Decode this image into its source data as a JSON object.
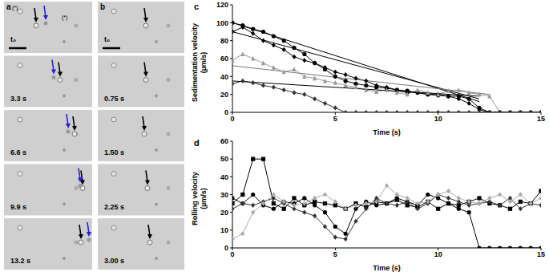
{
  "panels": [
    {
      "label": "a",
      "frames": [
        "t₀",
        "3.3 s",
        "6.6 s",
        "9.9 s",
        "13.2 s"
      ],
      "annotations": [
        "(*)",
        "(*)"
      ]
    },
    {
      "label": "b",
      "frames": [
        "t₀",
        "0.75 s",
        "1.50 s",
        "2.25 s",
        "3.00 s"
      ]
    }
  ],
  "chart_data": [
    {
      "type": "line",
      "title": "c",
      "x_label": "Time (s)",
      "y_label": "Sedimentation velocity (µm/s)",
      "xlim": [
        0,
        15
      ],
      "xticks": [
        0,
        5,
        10,
        15
      ],
      "ylim": [
        0,
        120
      ],
      "yticks": [
        0,
        20,
        40,
        60,
        80,
        100,
        120
      ],
      "series": [
        {
          "color": "#000000",
          "marker": "diamond",
          "line_style": "solid",
          "x": [
            0,
            0.5,
            1,
            1.5,
            2,
            2.5,
            3,
            3.5,
            4,
            4.5,
            5,
            5.5,
            6,
            6.5,
            7,
            7.5,
            8,
            8.5,
            9,
            9.5,
            10,
            10.5,
            11,
            11.5,
            12,
            12.5,
            13,
            13.5,
            14,
            14.5,
            15
          ],
          "values": [
            90,
            95,
            88,
            80,
            75,
            70,
            62,
            58,
            55,
            50,
            45,
            42,
            38,
            35,
            30,
            28,
            25,
            22,
            22,
            20,
            20,
            18,
            15,
            10,
            3,
            0,
            0,
            0,
            0,
            0,
            0
          ]
        },
        {
          "color": "#000000",
          "marker": "circle",
          "line_style": "solid",
          "x": [
            0,
            0.5,
            1,
            1.5,
            2,
            2.5,
            3,
            3.5,
            4,
            4.5,
            5,
            5.5,
            6,
            6.5,
            7,
            7.5,
            8,
            8.5,
            9,
            9.5,
            10,
            10.5,
            11,
            11.5,
            12,
            12.5,
            13,
            13.5,
            14,
            14.5,
            15
          ],
          "values": [
            100,
            97,
            93,
            90,
            85,
            80,
            72,
            65,
            55,
            48,
            40,
            35,
            32,
            30,
            28,
            27,
            25,
            24,
            22,
            20,
            19,
            18,
            18,
            15,
            5,
            0,
            0,
            0,
            0,
            0,
            0
          ]
        },
        {
          "color": "#999999",
          "marker": "triangle",
          "line_style": "solid",
          "x": [
            0,
            0.5,
            1,
            1.5,
            2,
            2.5,
            3,
            3.5,
            4,
            4.5,
            5,
            5.5,
            6,
            6.5,
            7,
            7.5,
            8,
            8.5,
            9,
            9.5,
            10,
            10.5,
            11,
            11.5,
            12,
            12.5,
            13,
            13.5,
            14,
            14.5,
            15
          ],
          "values": [
            58,
            65,
            60,
            55,
            50,
            45,
            48,
            40,
            38,
            35,
            33,
            30,
            28,
            25,
            23,
            25,
            22,
            20,
            25,
            22,
            20,
            24,
            25,
            22,
            20,
            18,
            0,
            0,
            0,
            0,
            0
          ]
        },
        {
          "color": "#333333",
          "marker": "diamond",
          "line_style": "solid",
          "x": [
            0,
            0.5,
            1,
            1.5,
            2,
            2.5,
            3,
            3.5,
            4,
            4.5,
            5,
            5.5,
            6,
            6.5,
            7,
            7.5,
            8,
            8.5,
            9,
            9.5,
            10,
            10.5,
            11,
            11.5,
            12,
            12.5,
            13,
            13.5,
            14,
            14.5,
            15
          ],
          "values": [
            32,
            35,
            33,
            30,
            28,
            25,
            22,
            20,
            15,
            10,
            5,
            0,
            0,
            0,
            0,
            0,
            0,
            0,
            0,
            0,
            0,
            0,
            0,
            0,
            0,
            0,
            0,
            0,
            0,
            0,
            0
          ]
        },
        {
          "type": "line",
          "color": "#000000",
          "marker": "none",
          "line_style": "solid",
          "x": [
            0,
            12
          ],
          "values": [
            100,
            12
          ]
        },
        {
          "type": "line",
          "color": "#000000",
          "marker": "none",
          "line_style": "solid",
          "x": [
            0,
            12
          ],
          "values": [
            90,
            15
          ]
        },
        {
          "type": "line",
          "color": "#777777",
          "marker": "none",
          "line_style": "solid",
          "x": [
            0,
            12.5
          ],
          "values": [
            52,
            20
          ]
        },
        {
          "type": "line",
          "color": "#000000",
          "marker": "none",
          "line_style": "solid",
          "x": [
            0,
            12
          ],
          "values": [
            35,
            18
          ]
        }
      ]
    },
    {
      "type": "line",
      "title": "d",
      "x_label": "Time (s)",
      "y_label": "Rolling velocity (µm/s)",
      "xlim": [
        0,
        15
      ],
      "xticks": [
        0,
        5,
        10,
        15
      ],
      "ylim": [
        0,
        60
      ],
      "yticks": [
        0,
        10,
        20,
        30,
        40,
        50,
        60
      ],
      "series": [
        {
          "color": "#000000",
          "marker": "square",
          "line_style": "solid",
          "x": [
            0,
            0.5,
            1,
            1.5,
            2,
            2.5,
            3,
            3.5,
            4,
            4.5,
            5,
            5.5,
            6,
            6.5,
            7,
            7.5,
            8,
            8.5,
            9,
            9.5,
            10,
            10.5,
            11,
            11.5,
            12,
            12.5,
            13,
            13.5,
            14,
            14.5,
            15
          ],
          "values": [
            25,
            30,
            50,
            50,
            25,
            22,
            28,
            24,
            26,
            25,
            24,
            22,
            25,
            23,
            26,
            25,
            27,
            24,
            23,
            26,
            22,
            25,
            24,
            26,
            28,
            25,
            24,
            22,
            26,
            25,
            32
          ]
        },
        {
          "color": "#000000",
          "marker": "circle",
          "line_style": "solid",
          "x": [
            0,
            0.5,
            1,
            1.5,
            2,
            2.5,
            3,
            3.5,
            4,
            4.5,
            5,
            5.5,
            6,
            6.5,
            7,
            7.5,
            8,
            8.5,
            9,
            9.5,
            10,
            10.5,
            11,
            11.5,
            12,
            12.5,
            13,
            13.5,
            14,
            14.5,
            15
          ],
          "values": [
            28,
            25,
            30,
            24,
            22,
            26,
            25,
            28,
            24,
            20,
            12,
            8,
            22,
            26,
            24,
            25,
            28,
            26,
            24,
            30,
            28,
            25,
            22,
            20,
            0,
            0,
            0,
            0,
            0,
            0,
            0
          ]
        },
        {
          "color": "#333333",
          "marker": "diamond",
          "line_style": "solid",
          "x": [
            0,
            0.5,
            1,
            1.5,
            2,
            2.5,
            3,
            3.5,
            4,
            4.5,
            5,
            5.5,
            6,
            6.5,
            7,
            7.5,
            8,
            8.5,
            9,
            9.5,
            10,
            10.5,
            11,
            11.5,
            12,
            12.5,
            13,
            13.5,
            14,
            14.5,
            15
          ],
          "values": [
            22,
            25,
            24,
            26,
            28,
            25,
            22,
            20,
            18,
            12,
            6,
            5,
            15,
            22,
            28,
            25,
            24,
            26,
            22,
            25,
            30,
            28,
            26,
            24,
            25,
            26,
            24,
            28,
            22,
            25,
            24
          ]
        },
        {
          "color": "#aaaaaa",
          "marker": "diamond",
          "line_style": "solid",
          "x": [
            0,
            0.5,
            1,
            1.5,
            2,
            2.5,
            3,
            3.5,
            4,
            4.5,
            5,
            5.5,
            6,
            6.5,
            7,
            7.5,
            8,
            8.5,
            9,
            9.5,
            10,
            10.5,
            11,
            11.5,
            12,
            12.5,
            13,
            13.5,
            14,
            14.5,
            15
          ],
          "values": [
            5,
            8,
            20,
            25,
            30,
            26,
            24,
            25,
            28,
            30,
            26,
            22,
            24,
            25,
            26,
            35,
            30,
            28,
            25,
            26,
            30,
            32,
            28,
            26,
            25,
            28,
            30,
            26,
            30,
            25,
            28
          ]
        }
      ]
    }
  ]
}
